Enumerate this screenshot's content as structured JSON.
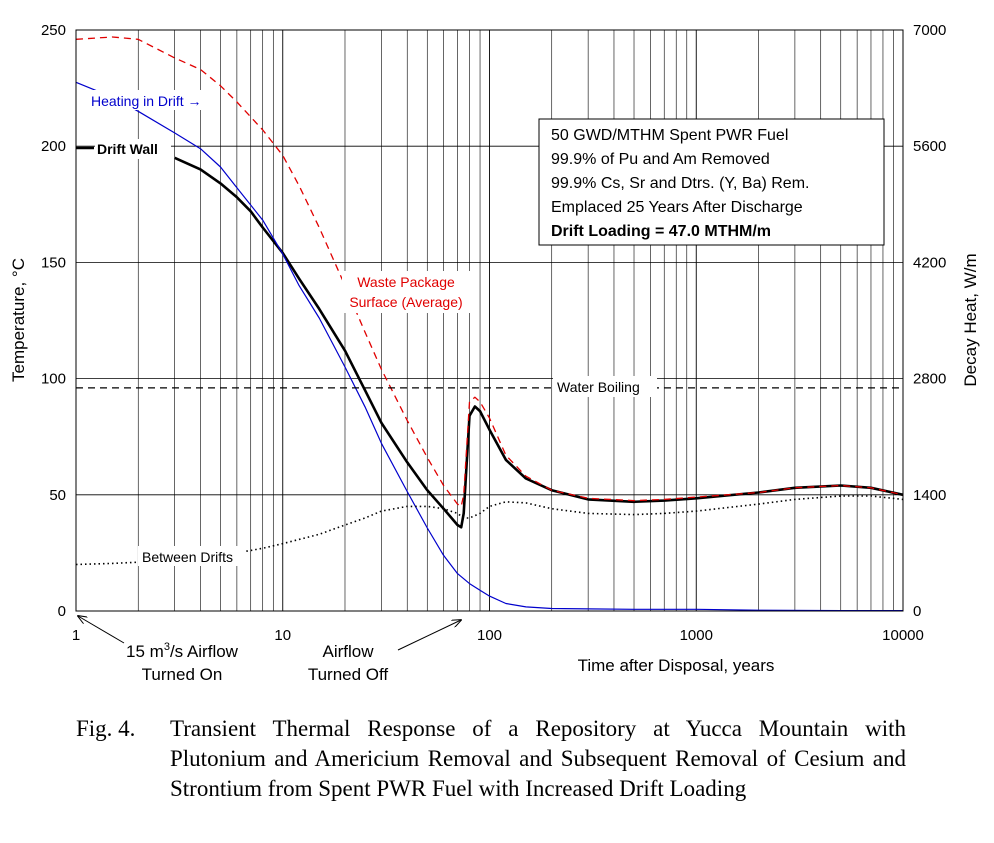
{
  "chart_data": {
    "type": "line",
    "title": "",
    "xlabel": "Time after Disposal, years",
    "ylabel": "Temperature, °C",
    "y2label": "Decay Heat, W/m",
    "x_scale": "log",
    "xlim": [
      1,
      10000
    ],
    "ylim": [
      0,
      250
    ],
    "y2lim": [
      0,
      7000
    ],
    "grid": true,
    "x_ticks": [
      "1",
      "10",
      "100",
      "1000",
      "10000"
    ],
    "y_ticks": [
      "0",
      "50",
      "100",
      "150",
      "200",
      "250"
    ],
    "y2_ticks": [
      "0",
      "1400",
      "2800",
      "4200",
      "5600",
      "7000"
    ],
    "series": [
      {
        "name": "Drift Wall",
        "color": "#000000",
        "style": "solid-thick",
        "x": [
          3,
          4,
          5,
          6,
          7,
          8,
          10,
          12,
          15,
          20,
          25,
          30,
          40,
          50,
          60,
          70,
          73,
          75,
          80,
          85,
          90,
          100,
          120,
          150,
          200,
          300,
          500,
          700,
          1000,
          2000,
          3000,
          5000,
          7000,
          10000
        ],
        "y": [
          195,
          190,
          184,
          178,
          172,
          165,
          154,
          143,
          130,
          112,
          95,
          81,
          64,
          52,
          44,
          37,
          36,
          42,
          84,
          88,
          86,
          78,
          65,
          57,
          52,
          48,
          47,
          47.5,
          48.5,
          51,
          53,
          54,
          53,
          50
        ]
      },
      {
        "name": "Waste Package Surface (Average)",
        "color": "#e00000",
        "style": "dashed",
        "x": [
          1,
          1.5,
          2,
          3,
          4,
          5,
          6,
          8,
          10,
          12,
          15,
          20,
          25,
          30,
          40,
          50,
          60,
          70,
          73,
          75,
          80,
          85,
          90,
          100,
          120,
          150,
          200,
          300,
          500,
          700,
          1000,
          2000,
          3000,
          5000,
          7000,
          10000
        ],
        "y": [
          246,
          247,
          246,
          238,
          233,
          226,
          219,
          207,
          196,
          183,
          165,
          140,
          120,
          104,
          82,
          66,
          54,
          46,
          45,
          50,
          90,
          92,
          90,
          83,
          67,
          58,
          52,
          48.5,
          47.5,
          48,
          49,
          51,
          53,
          54,
          53,
          50
        ]
      },
      {
        "name": "Heating in Drift",
        "color": "#0000cc",
        "style": "solid",
        "x": [
          1,
          1.5,
          2,
          3,
          4,
          5,
          6,
          8,
          10,
          12,
          15,
          20,
          25,
          30,
          40,
          50,
          60,
          70,
          80,
          90,
          100,
          120,
          150,
          200,
          300,
          500,
          1000,
          2000,
          5000,
          10000
        ],
        "y": [
          6370,
          6190,
          6020,
          5760,
          5570,
          5350,
          5100,
          4710,
          4300,
          3920,
          3530,
          2940,
          2460,
          2020,
          1440,
          1000,
          670,
          450,
          330,
          250,
          180,
          90,
          50,
          30,
          25,
          20,
          20,
          10,
          5,
          5
        ]
      },
      {
        "name": "Between Drifts",
        "color": "#000000",
        "style": "dotted",
        "x": [
          1,
          1.5,
          2,
          3,
          4,
          5,
          6,
          8,
          10,
          15,
          20,
          25,
          30,
          40,
          50,
          60,
          70,
          75,
          80,
          90,
          100,
          120,
          150,
          200,
          300,
          500,
          700,
          1000,
          2000,
          3000,
          5000,
          7000,
          10000
        ],
        "y": [
          20,
          20.5,
          21,
          22,
          23,
          24,
          25,
          27,
          29,
          33,
          37,
          40,
          43,
          45,
          45,
          44,
          42,
          40,
          40,
          42,
          45,
          47,
          46.5,
          44,
          42,
          41.5,
          42,
          43,
          46,
          48,
          49.5,
          49.5,
          48
        ]
      },
      {
        "name": "Water Boiling",
        "color": "#000000",
        "style": "dashed",
        "x": [
          1,
          10000
        ],
        "y": [
          96,
          96
        ]
      }
    ],
    "annotations": {
      "heating": "Heating in Drift →",
      "drift_wall": "Drift Wall",
      "wp_line1": "Waste Package",
      "wp_line2": "Surface (Average)",
      "water_boiling": "Water Boiling",
      "between": "Between Drifts",
      "airflow_on_line1": "15 m",
      "airflow_on_sup": "3",
      "airflow_on_line1b": "/s Airflow",
      "airflow_on_line2": "Turned On",
      "airflow_off_line1": "Airflow",
      "airflow_off_line2": "Turned Off"
    },
    "info_box": [
      "50 GWD/MTHM Spent PWR Fuel",
      "99.9% of Pu and Am Removed",
      "99.9% Cs, Sr and Dtrs. (Y, Ba) Rem.",
      "Emplaced 25 Years After Discharge",
      "Drift Loading = 47.0  MTHM/m"
    ]
  },
  "caption": {
    "label": "Fig. 4.",
    "text": "Transient Thermal Response of a Repository at Yucca Mountain with Plutonium and Americium Removal and Subsequent Removal of Cesium and Strontium from Spent PWR Fuel with Increased Drift Loading"
  }
}
